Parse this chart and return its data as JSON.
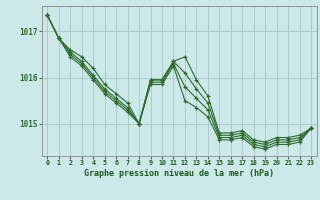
{
  "background_color": "#cce8e8",
  "grid_color": "#aacccc",
  "line_color": "#2d6b2d",
  "xlabel": "Graphe pression niveau de la mer (hPa)",
  "xlabel_color": "#1a5c1a",
  "ylabel_ticks": [
    1015,
    1016,
    1017
  ],
  "xlim": [
    -0.5,
    23.5
  ],
  "ylim": [
    1014.3,
    1017.55
  ],
  "series": [
    [
      1017.35,
      1016.85,
      1016.6,
      1016.45,
      1016.2,
      1015.85,
      1015.65,
      1015.45,
      1015.0,
      1015.95,
      1015.95,
      1016.35,
      1016.45,
      1015.95,
      1015.6,
      1014.8,
      1014.8,
      1014.85,
      1014.65,
      1014.6,
      1014.7,
      1014.7,
      1014.75,
      1014.9
    ],
    [
      1017.35,
      1016.85,
      1016.55,
      1016.35,
      1016.05,
      1015.75,
      1015.55,
      1015.35,
      1015.0,
      1015.95,
      1015.95,
      1016.35,
      1016.1,
      1015.75,
      1015.45,
      1014.75,
      1014.75,
      1014.8,
      1014.6,
      1014.55,
      1014.65,
      1014.65,
      1014.7,
      1014.9
    ],
    [
      1017.35,
      1016.85,
      1016.5,
      1016.3,
      1016.0,
      1015.7,
      1015.5,
      1015.3,
      1015.0,
      1015.9,
      1015.9,
      1016.3,
      1015.8,
      1015.55,
      1015.3,
      1014.7,
      1014.7,
      1014.75,
      1014.55,
      1014.5,
      1014.6,
      1014.6,
      1014.65,
      1014.9
    ],
    [
      1017.35,
      1016.85,
      1016.45,
      1016.25,
      1015.95,
      1015.65,
      1015.45,
      1015.25,
      1015.0,
      1015.85,
      1015.85,
      1016.25,
      1015.5,
      1015.35,
      1015.15,
      1014.65,
      1014.65,
      1014.7,
      1014.5,
      1014.45,
      1014.55,
      1014.55,
      1014.6,
      1014.9
    ]
  ]
}
